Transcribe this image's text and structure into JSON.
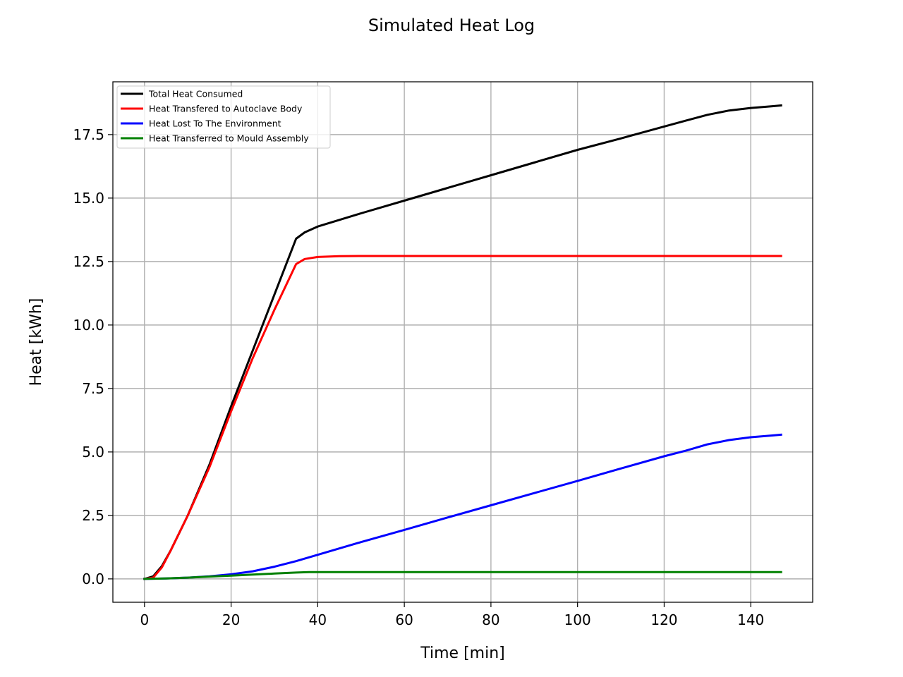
{
  "chart_data": {
    "type": "line",
    "title": "Simulated Heat Log",
    "xlabel": "Time [min]",
    "ylabel": "Heat [kWh]",
    "xlim": [
      -7.3,
      154.3
    ],
    "ylim": [
      -0.92,
      19.58
    ],
    "xticks": [
      0,
      20,
      40,
      60,
      80,
      100,
      120,
      140
    ],
    "yticks": [
      0.0,
      2.5,
      5.0,
      7.5,
      10.0,
      12.5,
      15.0,
      17.5
    ],
    "ytick_labels": [
      "0.0",
      "2.5",
      "5.0",
      "7.5",
      "10.0",
      "12.5",
      "15.0",
      "17.5"
    ],
    "grid": true,
    "legend_position": "top-left",
    "series": [
      {
        "name": "Total Heat Consumed",
        "color": "#000000",
        "x": [
          0,
          2,
          4,
          6,
          8,
          10,
          15,
          20,
          25,
          30,
          35,
          37,
          40,
          50,
          60,
          70,
          80,
          90,
          100,
          110,
          120,
          125,
          130,
          135,
          140,
          145,
          147
        ],
        "y": [
          0,
          0.1,
          0.5,
          1.1,
          1.8,
          2.5,
          4.5,
          6.8,
          9.0,
          11.2,
          13.4,
          13.65,
          13.88,
          14.4,
          14.9,
          15.4,
          15.9,
          16.4,
          16.9,
          17.35,
          17.82,
          18.05,
          18.28,
          18.45,
          18.55,
          18.62,
          18.65
        ]
      },
      {
        "name": "Heat Transfered to Autoclave Body",
        "color": "#ff0000",
        "x": [
          0,
          2,
          4,
          6,
          8,
          10,
          15,
          20,
          25,
          30,
          35,
          37,
          40,
          45,
          50,
          60,
          80,
          100,
          120,
          140,
          147
        ],
        "y": [
          0,
          0.05,
          0.45,
          1.1,
          1.8,
          2.5,
          4.4,
          6.6,
          8.7,
          10.6,
          12.4,
          12.6,
          12.68,
          12.71,
          12.72,
          12.72,
          12.72,
          12.72,
          12.72,
          12.72,
          12.72
        ]
      },
      {
        "name": "Heat Lost To The Environment",
        "color": "#0000ff",
        "x": [
          0,
          5,
          10,
          15,
          20,
          25,
          30,
          35,
          40,
          50,
          60,
          70,
          80,
          90,
          100,
          110,
          120,
          125,
          130,
          135,
          140,
          145,
          147
        ],
        "y": [
          0,
          0.02,
          0.05,
          0.1,
          0.18,
          0.3,
          0.48,
          0.7,
          0.95,
          1.45,
          1.93,
          2.42,
          2.9,
          3.38,
          3.86,
          4.35,
          4.83,
          5.05,
          5.3,
          5.47,
          5.58,
          5.65,
          5.68
        ]
      },
      {
        "name": "Heat Transferred to Mould Assembly",
        "color": "#008000",
        "x": [
          0,
          5,
          10,
          15,
          20,
          25,
          30,
          35,
          38,
          40,
          60,
          80,
          100,
          120,
          140,
          147
        ],
        "y": [
          0,
          0.02,
          0.05,
          0.09,
          0.13,
          0.17,
          0.21,
          0.25,
          0.27,
          0.27,
          0.27,
          0.27,
          0.27,
          0.27,
          0.27,
          0.27
        ]
      }
    ]
  }
}
